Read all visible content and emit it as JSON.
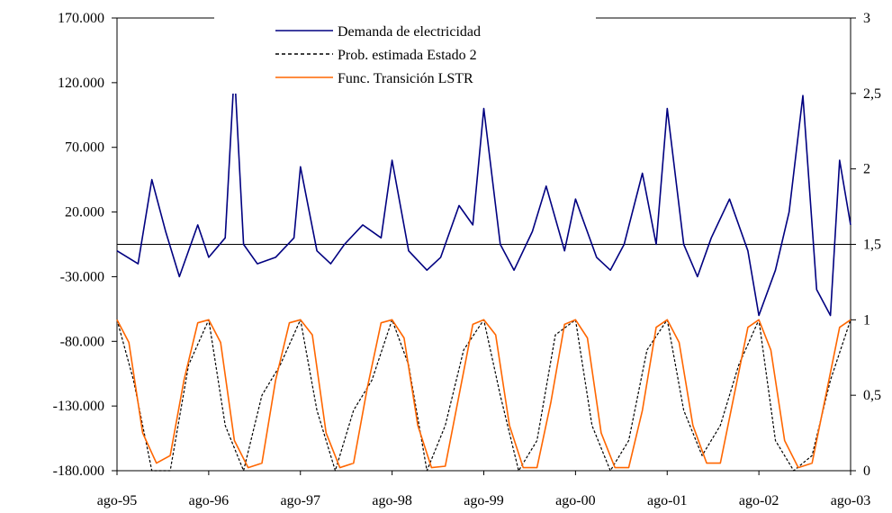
{
  "chart_data": {
    "type": "line",
    "title": "",
    "x_categories": [
      "ago-95",
      "ago-96",
      "ago-97",
      "ago-98",
      "ago-99",
      "ago-00",
      "ago-01",
      "ago-02",
      "ago-03"
    ],
    "y_left": {
      "range": [
        -180000,
        170000
      ],
      "ticks": [
        170000,
        120000,
        70000,
        20000,
        -30000,
        -80000,
        -130000,
        -180000
      ],
      "tick_labels": [
        "170.000",
        "120.000",
        "70.000",
        "20.000",
        "-30.000",
        "-80.000",
        "-130.000",
        "-180.000"
      ]
    },
    "y_right": {
      "range": [
        0,
        3
      ],
      "ticks": [
        3,
        2.5,
        2,
        1.5,
        1,
        0.5,
        0
      ],
      "tick_labels": [
        "3",
        "2,5",
        "2",
        "1,5",
        "1",
        "0,5",
        "0"
      ]
    },
    "reference_line": {
      "axis": "right",
      "value": 1.5
    },
    "legend": {
      "placement": "top-center"
    },
    "series": [
      {
        "name": "Demanda de electricidad",
        "axis": "left",
        "color": "#000080",
        "style": "solid",
        "x": [
          1995.62,
          1995.85,
          1996.0,
          1996.15,
          1996.3,
          1996.5,
          1996.62,
          1996.8,
          1996.9,
          1997.0,
          1997.15,
          1997.35,
          1997.55,
          1997.62,
          1997.8,
          1997.95,
          1998.1,
          1998.3,
          1998.5,
          1998.62,
          1998.8,
          1999.0,
          1999.15,
          1999.35,
          1999.5,
          1999.62,
          1999.8,
          1999.95,
          2000.15,
          2000.3,
          2000.5,
          2000.62,
          2000.85,
          2001.0,
          2001.15,
          2001.35,
          2001.5,
          2001.62,
          2001.8,
          2001.95,
          2002.1,
          2002.3,
          2002.5,
          2002.62,
          2002.8,
          2002.95,
          2003.1,
          2003.25,
          2003.4,
          2003.5,
          2003.62
        ],
        "values": [
          -10000,
          -20000,
          45000,
          5000,
          -30000,
          10000,
          -15000,
          0,
          130000,
          -5000,
          -20000,
          -15000,
          0,
          55000,
          -10000,
          -20000,
          -5000,
          10000,
          0,
          60000,
          -10000,
          -25000,
          -15000,
          25000,
          10000,
          100000,
          -5000,
          -25000,
          5000,
          40000,
          -10000,
          30000,
          -15000,
          -25000,
          -5000,
          50000,
          -5000,
          100000,
          -5000,
          -30000,
          0,
          30000,
          -10000,
          -60000,
          -25000,
          20000,
          110000,
          -40000,
          -60000,
          60000,
          10000
        ]
      },
      {
        "name": "Prob. estimada Estado 2",
        "axis": "right",
        "color": "#000000",
        "style": "dashed",
        "x": [
          1995.62,
          1995.8,
          1996.0,
          1996.2,
          1996.4,
          1996.62,
          1996.8,
          1997.0,
          1997.2,
          1997.4,
          1997.62,
          1997.8,
          1998.0,
          1998.2,
          1998.4,
          1998.62,
          1998.8,
          1999.0,
          1999.2,
          1999.4,
          1999.62,
          1999.8,
          2000.0,
          2000.2,
          2000.4,
          2000.62,
          2000.8,
          2001.0,
          2001.2,
          2001.4,
          2001.62,
          2001.8,
          2002.0,
          2002.2,
          2002.4,
          2002.62,
          2002.8,
          2003.0,
          2003.2,
          2003.4,
          2003.62
        ],
        "values": [
          1,
          0.6,
          0,
          0,
          0.7,
          1,
          0.3,
          0,
          0.5,
          0.7,
          1,
          0.4,
          0,
          0.4,
          0.6,
          1,
          0.7,
          0,
          0.3,
          0.8,
          1,
          0.5,
          0,
          0.2,
          0.9,
          1,
          0.3,
          0,
          0.2,
          0.8,
          1,
          0.4,
          0.1,
          0.3,
          0.7,
          1,
          0.2,
          0,
          0.1,
          0.6,
          1
        ]
      },
      {
        "name": "Func. Transición LSTR",
        "axis": "right",
        "color": "#ff6600",
        "style": "solid",
        "x": [
          1995.62,
          1995.75,
          1995.9,
          1996.05,
          1996.2,
          1996.35,
          1996.5,
          1996.62,
          1996.75,
          1996.9,
          1997.05,
          1997.2,
          1997.35,
          1997.5,
          1997.62,
          1997.75,
          1997.9,
          1998.05,
          1998.2,
          1998.35,
          1998.5,
          1998.62,
          1998.75,
          1998.9,
          1999.05,
          1999.2,
          1999.35,
          1999.5,
          1999.62,
          1999.75,
          1999.9,
          2000.05,
          2000.2,
          2000.35,
          2000.5,
          2000.62,
          2000.75,
          2000.9,
          2001.05,
          2001.2,
          2001.35,
          2001.5,
          2001.62,
          2001.75,
          2001.9,
          2002.05,
          2002.2,
          2002.35,
          2002.5,
          2002.62,
          2002.75,
          2002.9,
          2003.05,
          2003.2,
          2003.35,
          2003.5,
          2003.62
        ],
        "values": [
          1,
          0.85,
          0.25,
          0.05,
          0.1,
          0.6,
          0.98,
          1,
          0.85,
          0.2,
          0.02,
          0.05,
          0.6,
          0.98,
          1,
          0.9,
          0.25,
          0.02,
          0.05,
          0.55,
          0.98,
          1,
          0.88,
          0.3,
          0.02,
          0.03,
          0.5,
          0.97,
          1,
          0.9,
          0.3,
          0.02,
          0.02,
          0.45,
          0.97,
          1,
          0.88,
          0.25,
          0.02,
          0.02,
          0.4,
          0.95,
          1,
          0.85,
          0.3,
          0.05,
          0.05,
          0.5,
          0.95,
          1,
          0.8,
          0.2,
          0.02,
          0.05,
          0.5,
          0.95,
          1
        ]
      }
    ]
  }
}
